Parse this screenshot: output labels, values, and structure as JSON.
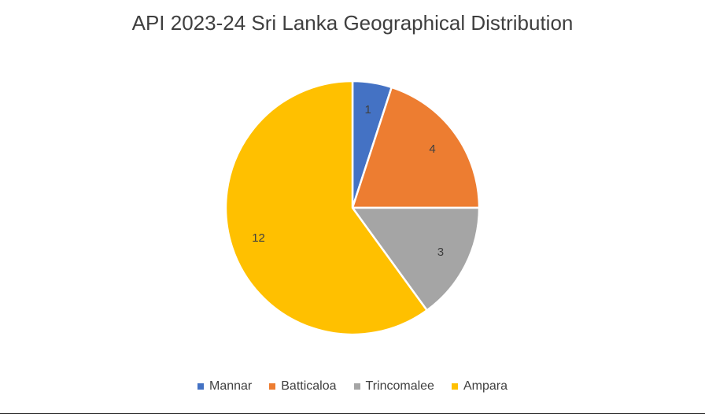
{
  "chart_data": {
    "type": "pie",
    "title": "API 2023-24 Sri Lanka Geographical Distribution",
    "categories": [
      "Mannar",
      "Batticaloa",
      "Trincomalee",
      "Ampara"
    ],
    "values": [
      1,
      4,
      3,
      12
    ],
    "data_labels": [
      "1",
      "4",
      "3",
      "12"
    ],
    "colors": [
      "#4472C4",
      "#ED7D31",
      "#A5A5A5",
      "#FFC000"
    ],
    "legend_position": "bottom",
    "start_angle": "top",
    "direction": "clockwise"
  }
}
